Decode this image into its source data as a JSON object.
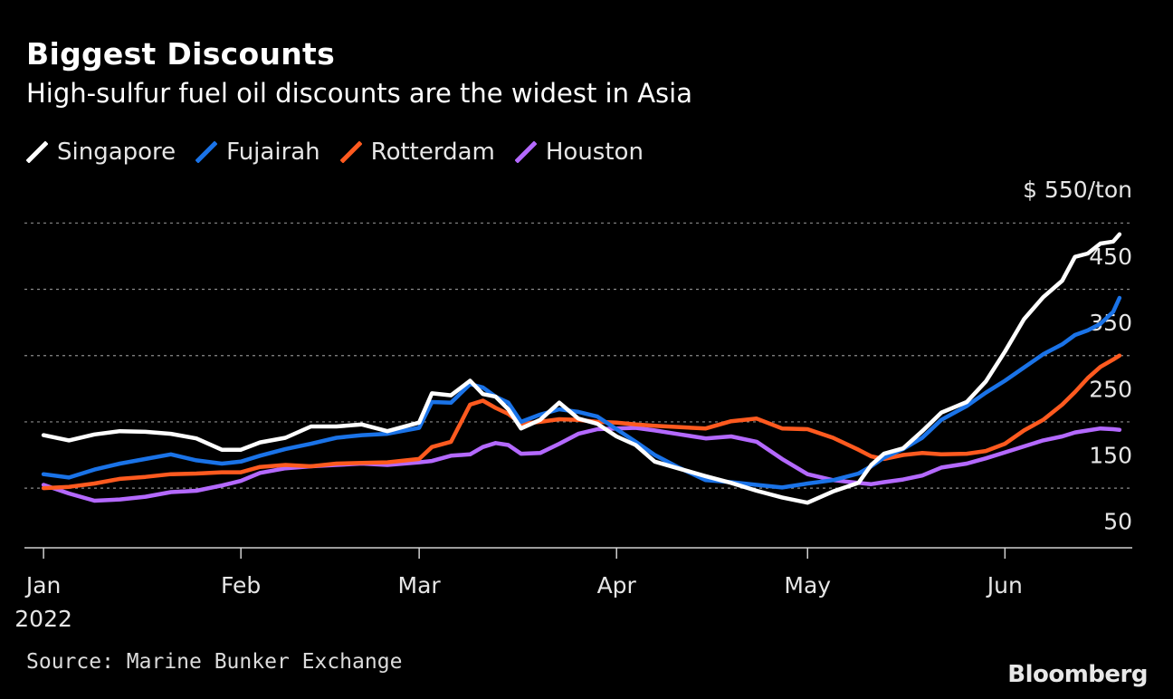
{
  "chart_data": {
    "type": "line",
    "title": "Biggest Discounts",
    "subtitle": "High-sulfur fuel oil discounts are the widest in Asia",
    "unit_label": "$ 550/ton",
    "x_axis": {
      "ticks": [
        {
          "label": "Jan",
          "sublabel": "2022",
          "date": "2022-01-01"
        },
        {
          "label": "Feb",
          "sublabel": "",
          "date": "2022-02-01"
        },
        {
          "label": "Mar",
          "sublabel": "",
          "date": "2022-03-01"
        },
        {
          "label": "Apr",
          "sublabel": "",
          "date": "2022-04-01"
        },
        {
          "label": "May",
          "sublabel": "",
          "date": "2022-05-01"
        },
        {
          "label": "Jun",
          "sublabel": "",
          "date": "2022-06-01"
        }
      ],
      "range": [
        "2021-12-29",
        "2022-06-21"
      ]
    },
    "y_axis": {
      "ticks": [
        50,
        150,
        250,
        350,
        450
      ],
      "gridlines": [
        100,
        200,
        300,
        400,
        500
      ],
      "range": [
        10,
        510
      ],
      "grid": true
    },
    "legend": {
      "placement": "top-left"
    },
    "series": [
      {
        "name": "Singapore",
        "color": "#ffffff",
        "points": [
          [
            "2022-01-01",
            180
          ],
          [
            "2022-01-05",
            172
          ],
          [
            "2022-01-09",
            181
          ],
          [
            "2022-01-13",
            186
          ],
          [
            "2022-01-17",
            185
          ],
          [
            "2022-01-21",
            182
          ],
          [
            "2022-01-25",
            175
          ],
          [
            "2022-01-29",
            158
          ],
          [
            "2022-02-01",
            158
          ],
          [
            "2022-02-04",
            169
          ],
          [
            "2022-02-08",
            176
          ],
          [
            "2022-02-12",
            193
          ],
          [
            "2022-02-16",
            193
          ],
          [
            "2022-02-20",
            196
          ],
          [
            "2022-02-24",
            186
          ],
          [
            "2022-03-01",
            199
          ],
          [
            "2022-03-03",
            243
          ],
          [
            "2022-03-06",
            240
          ],
          [
            "2022-03-09",
            262
          ],
          [
            "2022-03-11",
            242
          ],
          [
            "2022-03-13",
            238
          ],
          [
            "2022-03-15",
            219
          ],
          [
            "2022-03-17",
            190
          ],
          [
            "2022-03-20",
            203
          ],
          [
            "2022-03-23",
            229
          ],
          [
            "2022-03-26",
            205
          ],
          [
            "2022-03-29",
            197
          ],
          [
            "2022-04-01",
            178
          ],
          [
            "2022-04-04",
            165
          ],
          [
            "2022-04-07",
            140
          ],
          [
            "2022-04-11",
            129
          ],
          [
            "2022-04-15",
            118
          ],
          [
            "2022-04-19",
            108
          ],
          [
            "2022-04-23",
            96
          ],
          [
            "2022-04-27",
            86
          ],
          [
            "2022-05-01",
            78
          ],
          [
            "2022-05-05",
            95
          ],
          [
            "2022-05-09",
            108
          ],
          [
            "2022-05-11",
            135
          ],
          [
            "2022-05-13",
            152
          ],
          [
            "2022-05-16",
            160
          ],
          [
            "2022-05-19",
            186
          ],
          [
            "2022-05-22",
            214
          ],
          [
            "2022-05-26",
            230
          ],
          [
            "2022-05-29",
            261
          ],
          [
            "2022-06-01",
            306
          ],
          [
            "2022-06-04",
            355
          ],
          [
            "2022-06-07",
            388
          ],
          [
            "2022-06-10",
            413
          ],
          [
            "2022-06-12",
            449
          ],
          [
            "2022-06-14",
            454
          ],
          [
            "2022-06-16",
            469
          ],
          [
            "2022-06-18",
            472
          ],
          [
            "2022-06-19",
            483
          ]
        ]
      },
      {
        "name": "Fujairah",
        "color": "#1a73e8",
        "points": [
          [
            "2022-01-01",
            121
          ],
          [
            "2022-01-05",
            116
          ],
          [
            "2022-01-09",
            128
          ],
          [
            "2022-01-13",
            137
          ],
          [
            "2022-01-17",
            144
          ],
          [
            "2022-01-21",
            151
          ],
          [
            "2022-01-25",
            142
          ],
          [
            "2022-01-29",
            137
          ],
          [
            "2022-02-01",
            140
          ],
          [
            "2022-02-04",
            149
          ],
          [
            "2022-02-08",
            159
          ],
          [
            "2022-02-12",
            167
          ],
          [
            "2022-02-16",
            176
          ],
          [
            "2022-02-20",
            180
          ],
          [
            "2022-02-24",
            182
          ],
          [
            "2022-03-01",
            191
          ],
          [
            "2022-03-03",
            230
          ],
          [
            "2022-03-06",
            229
          ],
          [
            "2022-03-09",
            257
          ],
          [
            "2022-03-11",
            252
          ],
          [
            "2022-03-13",
            238
          ],
          [
            "2022-03-15",
            229
          ],
          [
            "2022-03-17",
            200
          ],
          [
            "2022-03-20",
            211
          ],
          [
            "2022-03-23",
            219
          ],
          [
            "2022-03-26",
            215
          ],
          [
            "2022-03-29",
            208
          ],
          [
            "2022-04-01",
            189
          ],
          [
            "2022-04-04",
            170
          ],
          [
            "2022-04-07",
            150
          ],
          [
            "2022-04-11",
            130
          ],
          [
            "2022-04-15",
            112
          ],
          [
            "2022-04-19",
            109
          ],
          [
            "2022-04-23",
            105
          ],
          [
            "2022-04-27",
            101
          ],
          [
            "2022-05-01",
            107
          ],
          [
            "2022-05-05",
            112
          ],
          [
            "2022-05-09",
            122
          ],
          [
            "2022-05-11",
            133
          ],
          [
            "2022-05-13",
            146
          ],
          [
            "2022-05-16",
            159
          ],
          [
            "2022-05-19",
            176
          ],
          [
            "2022-05-22",
            203
          ],
          [
            "2022-05-26",
            224
          ],
          [
            "2022-05-29",
            244
          ],
          [
            "2022-06-01",
            262
          ],
          [
            "2022-06-04",
            282
          ],
          [
            "2022-06-07",
            302
          ],
          [
            "2022-06-10",
            317
          ],
          [
            "2022-06-12",
            331
          ],
          [
            "2022-06-14",
            338
          ],
          [
            "2022-06-16",
            348
          ],
          [
            "2022-06-18",
            366
          ],
          [
            "2022-06-19",
            387
          ]
        ]
      },
      {
        "name": "Rotterdam",
        "color": "#ff5a1f",
        "points": [
          [
            "2022-01-01",
            100
          ],
          [
            "2022-01-05",
            102
          ],
          [
            "2022-01-09",
            107
          ],
          [
            "2022-01-13",
            114
          ],
          [
            "2022-01-17",
            117
          ],
          [
            "2022-01-21",
            121
          ],
          [
            "2022-01-25",
            122
          ],
          [
            "2022-01-29",
            124
          ],
          [
            "2022-02-01",
            124
          ],
          [
            "2022-02-04",
            132
          ],
          [
            "2022-02-08",
            135
          ],
          [
            "2022-02-12",
            133
          ],
          [
            "2022-02-16",
            137
          ],
          [
            "2022-02-20",
            138
          ],
          [
            "2022-02-24",
            139
          ],
          [
            "2022-03-01",
            144
          ],
          [
            "2022-03-03",
            162
          ],
          [
            "2022-03-06",
            170
          ],
          [
            "2022-03-09",
            226
          ],
          [
            "2022-03-11",
            232
          ],
          [
            "2022-03-13",
            221
          ],
          [
            "2022-03-15",
            212
          ],
          [
            "2022-03-17",
            197
          ],
          [
            "2022-03-20",
            200
          ],
          [
            "2022-03-23",
            204
          ],
          [
            "2022-03-26",
            203
          ],
          [
            "2022-03-29",
            200
          ],
          [
            "2022-04-01",
            199
          ],
          [
            "2022-04-04",
            196
          ],
          [
            "2022-04-07",
            194
          ],
          [
            "2022-04-11",
            192
          ],
          [
            "2022-04-15",
            190
          ],
          [
            "2022-04-19",
            201
          ],
          [
            "2022-04-23",
            205
          ],
          [
            "2022-04-27",
            190
          ],
          [
            "2022-05-01",
            189
          ],
          [
            "2022-05-05",
            176
          ],
          [
            "2022-05-09",
            158
          ],
          [
            "2022-05-11",
            148
          ],
          [
            "2022-05-13",
            144
          ],
          [
            "2022-05-16",
            150
          ],
          [
            "2022-05-19",
            153
          ],
          [
            "2022-05-22",
            151
          ],
          [
            "2022-05-26",
            152
          ],
          [
            "2022-05-29",
            156
          ],
          [
            "2022-06-01",
            167
          ],
          [
            "2022-06-04",
            187
          ],
          [
            "2022-06-07",
            203
          ],
          [
            "2022-06-10",
            226
          ],
          [
            "2022-06-12",
            245
          ],
          [
            "2022-06-14",
            266
          ],
          [
            "2022-06-16",
            283
          ],
          [
            "2022-06-18",
            294
          ],
          [
            "2022-06-19",
            300
          ]
        ]
      },
      {
        "name": "Houston",
        "color": "#b469ff",
        "points": [
          [
            "2022-01-01",
            105
          ],
          [
            "2022-01-05",
            92
          ],
          [
            "2022-01-09",
            81
          ],
          [
            "2022-01-13",
            83
          ],
          [
            "2022-01-17",
            87
          ],
          [
            "2022-01-21",
            94
          ],
          [
            "2022-01-25",
            96
          ],
          [
            "2022-01-29",
            104
          ],
          [
            "2022-02-01",
            111
          ],
          [
            "2022-02-04",
            123
          ],
          [
            "2022-02-08",
            130
          ],
          [
            "2022-02-12",
            133
          ],
          [
            "2022-02-16",
            135
          ],
          [
            "2022-02-20",
            137
          ],
          [
            "2022-02-24",
            135
          ],
          [
            "2022-03-01",
            139
          ],
          [
            "2022-03-03",
            141
          ],
          [
            "2022-03-06",
            149
          ],
          [
            "2022-03-09",
            151
          ],
          [
            "2022-03-11",
            162
          ],
          [
            "2022-03-13",
            168
          ],
          [
            "2022-03-15",
            165
          ],
          [
            "2022-03-17",
            152
          ],
          [
            "2022-03-20",
            153
          ],
          [
            "2022-03-23",
            167
          ],
          [
            "2022-03-26",
            182
          ],
          [
            "2022-03-29",
            189
          ],
          [
            "2022-04-01",
            190
          ],
          [
            "2022-04-04",
            191
          ],
          [
            "2022-04-07",
            187
          ],
          [
            "2022-04-11",
            181
          ],
          [
            "2022-04-15",
            175
          ],
          [
            "2022-04-19",
            178
          ],
          [
            "2022-04-23",
            170
          ],
          [
            "2022-04-27",
            144
          ],
          [
            "2022-05-01",
            121
          ],
          [
            "2022-05-05",
            112
          ],
          [
            "2022-05-09",
            108
          ],
          [
            "2022-05-11",
            106
          ],
          [
            "2022-05-13",
            109
          ],
          [
            "2022-05-16",
            113
          ],
          [
            "2022-05-19",
            119
          ],
          [
            "2022-05-22",
            131
          ],
          [
            "2022-05-26",
            137
          ],
          [
            "2022-05-29",
            145
          ],
          [
            "2022-06-01",
            154
          ],
          [
            "2022-06-04",
            163
          ],
          [
            "2022-06-07",
            172
          ],
          [
            "2022-06-10",
            178
          ],
          [
            "2022-06-12",
            184
          ],
          [
            "2022-06-14",
            187
          ],
          [
            "2022-06-16",
            190
          ],
          [
            "2022-06-18",
            189
          ],
          [
            "2022-06-19",
            188
          ]
        ]
      }
    ]
  },
  "footer": {
    "source": "Source: Marine Bunker Exchange",
    "brand": "Bloomberg"
  }
}
